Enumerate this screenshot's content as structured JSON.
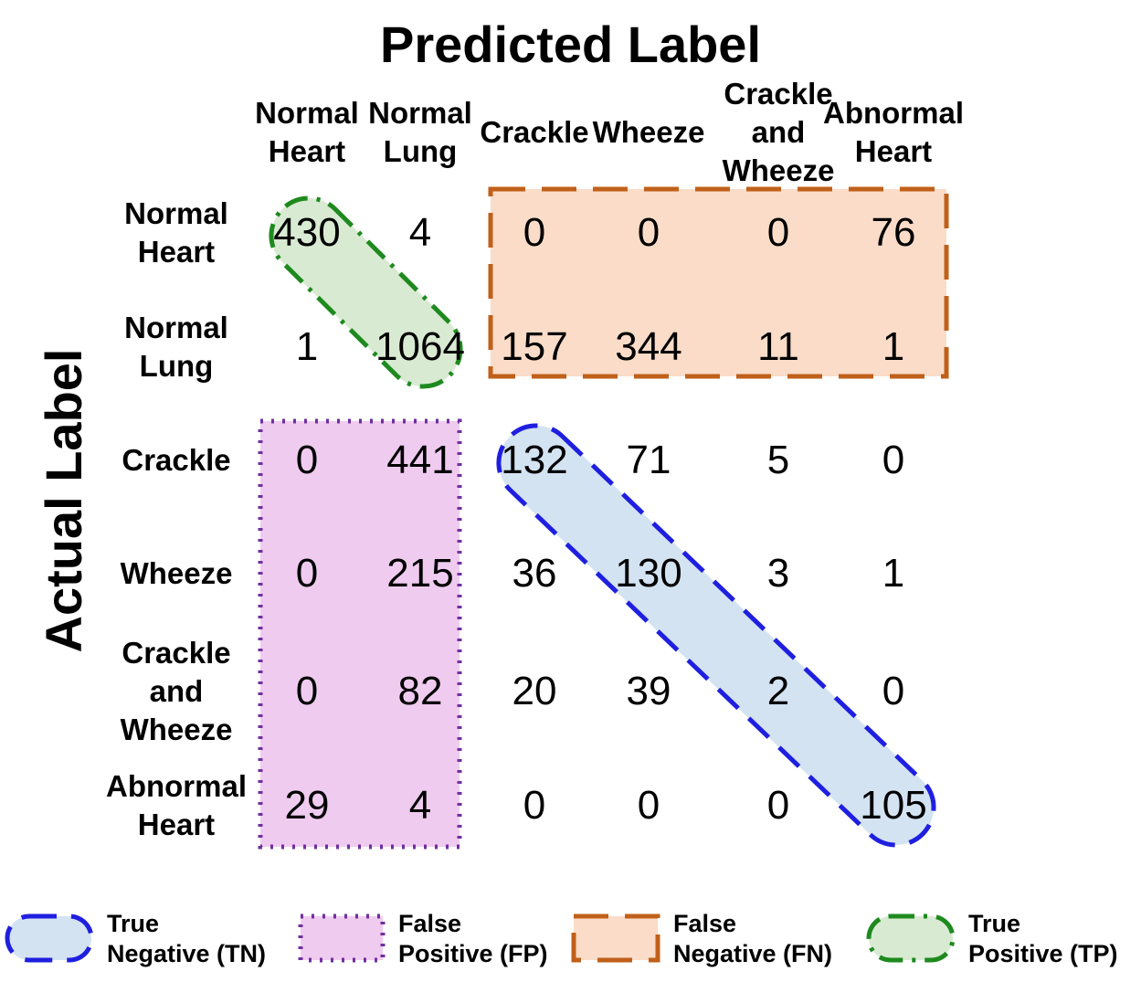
{
  "chart_data": {
    "type": "heatmap",
    "title": "Predicted Label",
    "xlabel": "Predicted Label",
    "ylabel": "Actual Label",
    "columns": [
      "Normal\nHeart",
      "Normal\nLung",
      "Crackle",
      "Wheeze",
      "Crackle\nand\nWheeze",
      "Abnormal\nHeart"
    ],
    "rows": [
      "Normal\nHeart",
      "Normal\nLung",
      "Crackle",
      "Wheeze",
      "Crackle\nand\nWheeze",
      "Abnormal\nHeart"
    ],
    "values": [
      [
        430,
        4,
        0,
        0,
        0,
        76
      ],
      [
        1,
        1064,
        157,
        344,
        11,
        1
      ],
      [
        0,
        441,
        132,
        71,
        5,
        0
      ],
      [
        0,
        215,
        36,
        130,
        3,
        1
      ],
      [
        0,
        82,
        20,
        39,
        2,
        0
      ],
      [
        29,
        4,
        0,
        0,
        0,
        105
      ]
    ],
    "regions": [
      {
        "name": "True Positive (TP)",
        "cells": [
          [
            0,
            0
          ],
          [
            1,
            1
          ]
        ],
        "fill": "#d9ead3",
        "stroke": "#1e8a1e",
        "style": "dash-dot"
      },
      {
        "name": "False Negative (FN)",
        "cells": [
          [
            0,
            2
          ],
          [
            0,
            3
          ],
          [
            0,
            4
          ],
          [
            0,
            5
          ],
          [
            1,
            2
          ],
          [
            1,
            3
          ],
          [
            1,
            4
          ],
          [
            1,
            5
          ]
        ],
        "fill": "#fbdcc8",
        "stroke": "#c0601a",
        "style": "long-dash"
      },
      {
        "name": "False Positive (FP)",
        "cells": [
          [
            2,
            0
          ],
          [
            2,
            1
          ],
          [
            3,
            0
          ],
          [
            3,
            1
          ],
          [
            4,
            0
          ],
          [
            4,
            1
          ],
          [
            5,
            0
          ],
          [
            5,
            1
          ]
        ],
        "fill": "#f0cbf0",
        "stroke": "#7030a0",
        "style": "dotted"
      },
      {
        "name": "True Negative (TN)",
        "cells": [
          [
            2,
            2
          ],
          [
            3,
            3
          ],
          [
            4,
            4
          ],
          [
            5,
            5
          ]
        ],
        "fill": "#d3e3f2",
        "stroke": "#1f1fe0",
        "style": "dashed"
      }
    ]
  },
  "legend": [
    {
      "label": "True\nNegative (TN)",
      "fill": "#d3e3f2",
      "stroke": "#1f1fe0",
      "style": "dashed",
      "shape": "pill",
      "icon": "tn-swatch-icon"
    },
    {
      "label": "False\nPositive (FP)",
      "fill": "#f0cbf0",
      "stroke": "#7030a0",
      "style": "dotted",
      "shape": "rect",
      "icon": "fp-swatch-icon"
    },
    {
      "label": "False\nNegative (FN)",
      "fill": "#fbdcc8",
      "stroke": "#c0601a",
      "style": "long-dash",
      "shape": "rect",
      "icon": "fn-swatch-icon"
    },
    {
      "label": "True\nPositive (TP)",
      "fill": "#d9ead3",
      "stroke": "#1e8a1e",
      "style": "dash-dot",
      "shape": "pill",
      "icon": "tp-swatch-icon"
    }
  ]
}
